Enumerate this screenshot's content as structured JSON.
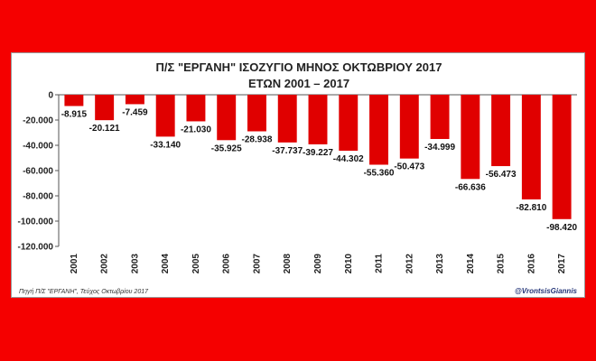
{
  "chart_data": {
    "type": "bar",
    "title": "Π/Σ \"ΕΡΓΑΝΗ\" ΙΣΟΖΥΓΙΟ ΜΗΝΟΣ ΟΚΤΩΒΡΙΟΥ 2017",
    "subtitle": "ΕΤΩΝ 2001 – 2017",
    "categories": [
      "2001",
      "2002",
      "2003",
      "2004",
      "2005",
      "2006",
      "2007",
      "2008",
      "2009",
      "2010",
      "2011",
      "2012",
      "2013",
      "2014",
      "2015",
      "2016",
      "2017"
    ],
    "values": [
      -8915,
      -20121,
      -7459,
      -33140,
      -21030,
      -35925,
      -28938,
      -37737,
      -39227,
      -44302,
      -55360,
      -50473,
      -34999,
      -66636,
      -56473,
      -82810,
      -98420
    ],
    "data_labels": [
      "-8.915",
      "-20.121",
      "-7.459",
      "-33.140",
      "-21.030",
      "-35.925",
      "-28.938",
      "-37.737",
      "-39.227",
      "-44.302",
      "-55.360",
      "-50.473",
      "-34.999",
      "-66.636",
      "-56.473",
      "-82.810",
      "-98.420"
    ],
    "yticks": [
      0,
      -20000,
      -40000,
      -60000,
      -80000,
      -100000,
      -120000
    ],
    "ytick_labels": [
      "0",
      "-20.000",
      "-40.000",
      "-60.000",
      "-80.000",
      "-100.000",
      "-120.000"
    ],
    "ylim": [
      -120000,
      0
    ],
    "grid": false,
    "bar_color": "#e00000",
    "source": "Πηγή Π/Σ \"ΕΡΓΑΝΗ\", Τεύχος Οκτωβρίου 2017",
    "credit": "@VrontsisGiannis"
  },
  "colors": {
    "background": "#f50000",
    "panel": "#ffffff"
  }
}
